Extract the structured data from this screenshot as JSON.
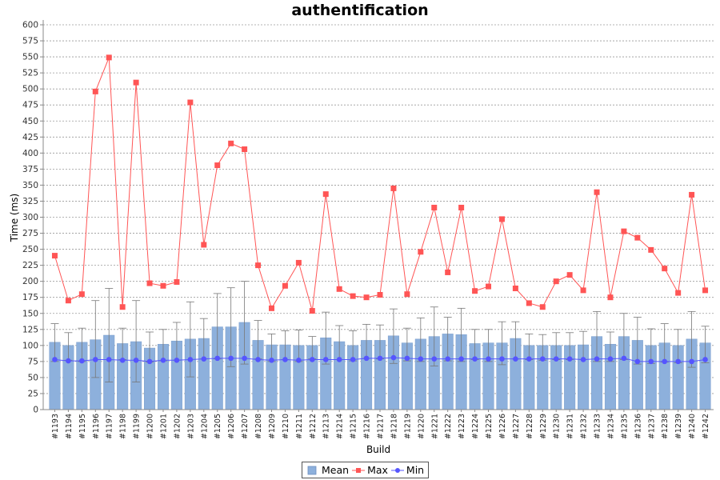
{
  "chart_data": {
    "type": "bar",
    "title": "authentification",
    "xlabel": "Build",
    "ylabel": "Time (ms)",
    "ylim": [
      0,
      600
    ],
    "ytick_step": 25,
    "grid": true,
    "legend_position": "bottom",
    "categories": [
      "#1193",
      "#1194",
      "#1195",
      "#1196",
      "#1197",
      "#1198",
      "#1199",
      "#1200",
      "#1201",
      "#1202",
      "#1203",
      "#1204",
      "#1205",
      "#1206",
      "#1207",
      "#1208",
      "#1209",
      "#1210",
      "#1211",
      "#1212",
      "#1213",
      "#1214",
      "#1215",
      "#1216",
      "#1217",
      "#1218",
      "#1219",
      "#1220",
      "#1221",
      "#1222",
      "#1223",
      "#1224",
      "#1225",
      "#1226",
      "#1227",
      "#1228",
      "#1229",
      "#1230",
      "#1231",
      "#1232",
      "#1233",
      "#1234",
      "#1235",
      "#1236",
      "#1237",
      "#1238",
      "#1239",
      "#1240",
      "#1242"
    ],
    "series": [
      {
        "name": "Mean",
        "kind": "bar",
        "color": "#8DB0DC",
        "values": [
          105,
          100,
          105,
          109,
          116,
          103,
          106,
          96,
          102,
          107,
          110,
          111,
          129,
          129,
          136,
          108,
          101,
          101,
          100,
          100,
          112,
          106,
          100,
          108,
          108,
          115,
          104,
          110,
          114,
          118,
          117,
          103,
          104,
          104,
          111,
          100,
          100,
          100,
          100,
          101,
          114,
          102,
          114,
          108,
          100,
          104,
          100,
          110,
          104
        ],
        "error_low": [
          75,
          77,
          75,
          50,
          43,
          78,
          43,
          74,
          76,
          77,
          51,
          79,
          79,
          67,
          71,
          79,
          75,
          78,
          75,
          79,
          71,
          78,
          76,
          80,
          79,
          72,
          76,
          75,
          68,
          76,
          75,
          78,
          75,
          70,
          79,
          78,
          77,
          78,
          78,
          78,
          75,
          75,
          78,
          71,
          72,
          74,
          73,
          66,
          73
        ],
        "error_high": [
          134,
          120,
          127,
          170,
          189,
          127,
          170,
          121,
          125,
          136,
          168,
          142,
          181,
          190,
          200,
          139,
          118,
          123,
          124,
          114,
          152,
          131,
          123,
          133,
          132,
          157,
          127,
          143,
          160,
          144,
          158,
          125,
          125,
          137,
          137,
          118,
          117,
          120,
          120,
          122,
          153,
          121,
          150,
          144,
          126,
          134,
          125,
          153,
          130
        ]
      },
      {
        "name": "Max",
        "kind": "line",
        "color": "#FF5555",
        "values": [
          240,
          170,
          180,
          496,
          549,
          160,
          510,
          197,
          193,
          199,
          479,
          257,
          381,
          415,
          406,
          225,
          158,
          193,
          229,
          154,
          336,
          188,
          177,
          175,
          179,
          345,
          180,
          246,
          315,
          214,
          315,
          185,
          192,
          297,
          189,
          166,
          160,
          200,
          210,
          186,
          339,
          175,
          278,
          268,
          249,
          220,
          182,
          335,
          186
        ]
      },
      {
        "name": "Min",
        "kind": "line",
        "color": "#5555FF",
        "values": [
          78,
          76,
          76,
          78,
          78,
          77,
          77,
          75,
          77,
          77,
          78,
          79,
          80,
          80,
          80,
          78,
          77,
          78,
          77,
          78,
          78,
          78,
          78,
          80,
          80,
          81,
          80,
          79,
          79,
          79,
          79,
          79,
          79,
          79,
          79,
          79,
          79,
          79,
          79,
          78,
          79,
          79,
          80,
          75,
          75,
          75,
          75,
          75,
          78
        ]
      }
    ]
  }
}
